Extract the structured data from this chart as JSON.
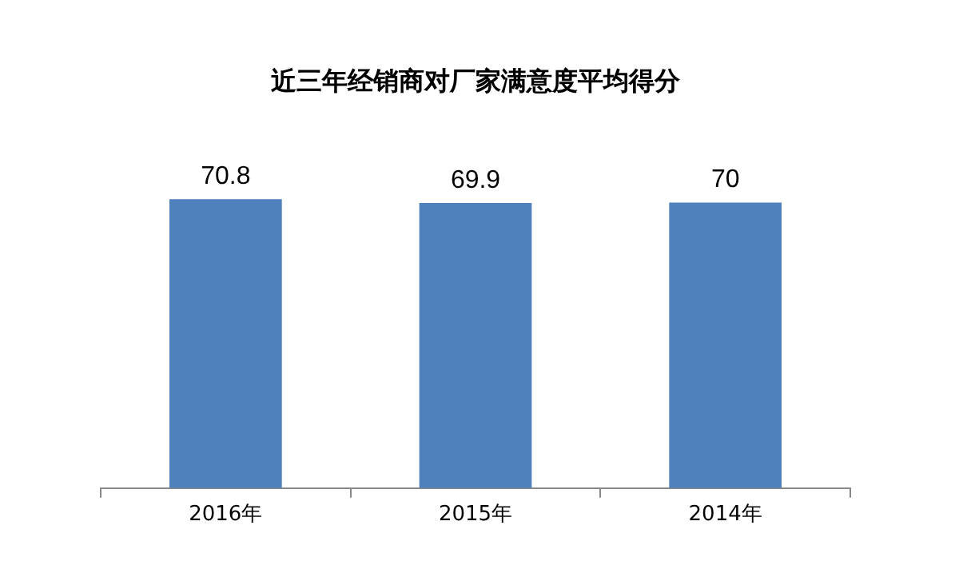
{
  "chart_data": {
    "type": "bar",
    "title": "近三年经销商对厂家满意度平均得分",
    "categories": [
      "2016年",
      "2015年",
      "2014年"
    ],
    "values": [
      70.8,
      69.9,
      70
    ],
    "color": "#4f81bd",
    "data_labels": true,
    "grid": false,
    "legend": false,
    "tick_labels": "x"
  }
}
